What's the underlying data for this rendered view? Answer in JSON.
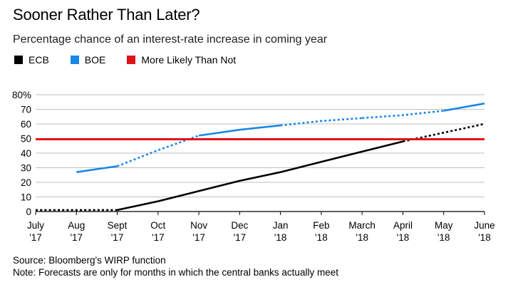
{
  "title": "Sooner Rather Than Later?",
  "subtitle": "Percentage chance of an interest-rate increase in coming year",
  "legend": [
    {
      "label": "ECB",
      "color": "#000000"
    },
    {
      "label": "BOE",
      "color": "#1a86e8"
    },
    {
      "label": "More Likely Than Not",
      "color": "#e0121b"
    }
  ],
  "footer": {
    "source": "Source: Bloomberg's WIRP function",
    "note": "Note: Forecasts are only for months in which the central banks actually meet"
  },
  "chart_data": {
    "type": "line",
    "title": "Sooner Rather Than Later?",
    "subtitle": "Percentage chance of an interest-rate increase in coming year",
    "ylim": [
      0,
      80
    ],
    "y_ticks": [
      0,
      10,
      20,
      30,
      40,
      50,
      60,
      70,
      80
    ],
    "y_tick_labels": [
      "0",
      "10",
      "20",
      "30",
      "40",
      "50",
      "60",
      "70",
      "80%"
    ],
    "xlim": [
      0,
      11
    ],
    "x_ticks": [
      {
        "x": 0,
        "line1": "July",
        "line2": "'17"
      },
      {
        "x": 1,
        "line1": "Aug",
        "line2": "'17"
      },
      {
        "x": 2,
        "line1": "Sept",
        "line2": "'17"
      },
      {
        "x": 3,
        "line1": "Oct",
        "line2": "'17"
      },
      {
        "x": 4,
        "line1": "Nov",
        "line2": "'17"
      },
      {
        "x": 5,
        "line1": "Dec",
        "line2": "'17"
      },
      {
        "x": 6,
        "line1": "Jan",
        "line2": "'18"
      },
      {
        "x": 7,
        "line1": "Feb",
        "line2": "'18"
      },
      {
        "x": 8,
        "line1": "March",
        "line2": "'18"
      },
      {
        "x": 9,
        "line1": "April",
        "line2": "'18"
      },
      {
        "x": 10,
        "line1": "May",
        "line2": "'18"
      },
      {
        "x": 11,
        "line1": "June",
        "line2": "'18"
      }
    ],
    "grid": true,
    "series": [
      {
        "name": "ECB",
        "color": "#000000",
        "segments": [
          {
            "style": "dotted",
            "points": [
              [
                0,
                1
              ],
              [
                2,
                1
              ]
            ]
          },
          {
            "style": "solid",
            "points": [
              [
                2,
                1
              ],
              [
                3,
                7
              ],
              [
                4,
                14
              ],
              [
                5,
                21
              ],
              [
                6,
                27
              ],
              [
                7,
                34
              ],
              [
                8,
                41
              ],
              [
                9,
                48
              ]
            ]
          },
          {
            "style": "dotted",
            "points": [
              [
                9,
                48
              ],
              [
                10,
                54
              ],
              [
                11,
                60
              ]
            ]
          }
        ]
      },
      {
        "name": "BOE",
        "color": "#1a86e8",
        "segments": [
          {
            "style": "solid",
            "points": [
              [
                1,
                27
              ],
              [
                2,
                31
              ]
            ]
          },
          {
            "style": "dotted",
            "points": [
              [
                2,
                31
              ],
              [
                3,
                42
              ],
              [
                4,
                52
              ]
            ]
          },
          {
            "style": "solid",
            "points": [
              [
                4,
                52
              ],
              [
                5,
                56
              ],
              [
                6,
                59
              ]
            ]
          },
          {
            "style": "dotted",
            "points": [
              [
                6,
                59
              ],
              [
                7,
                62
              ],
              [
                8,
                64
              ]
            ]
          },
          {
            "style": "solid",
            "points": [
              [
                8,
                64
              ]
            ]
          },
          {
            "style": "dotted",
            "points": [
              [
                8,
                64
              ],
              [
                9,
                66
              ],
              [
                10,
                69
              ]
            ]
          },
          {
            "style": "solid",
            "points": [
              [
                10,
                69
              ],
              [
                11,
                74
              ]
            ]
          }
        ]
      },
      {
        "name": "More Likely Than Not",
        "color": "#e0121b",
        "segments": [
          {
            "style": "solid",
            "points": [
              [
                0,
                49.5
              ],
              [
                11,
                49.5
              ]
            ]
          }
        ]
      }
    ]
  }
}
